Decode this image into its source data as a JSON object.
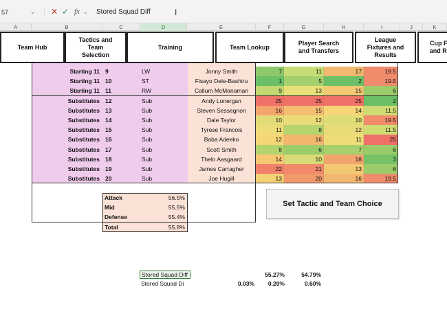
{
  "formula_bar": {
    "name_box": "57",
    "formula": "Stored Squad Diff"
  },
  "columns": [
    "A",
    "B",
    "C",
    "D",
    "E",
    "F",
    "G",
    "H",
    "I",
    "J",
    "K"
  ],
  "nav": [
    {
      "label": "Team Hub"
    },
    {
      "label": "Tactics and Team Selection"
    },
    {
      "label": "Training"
    },
    {
      "label": "Team Lookup"
    },
    {
      "label": "Player Search and Transfers"
    },
    {
      "label": "League Fixtures and Results"
    },
    {
      "label": "Cup F... and R..."
    }
  ],
  "rows": [
    {
      "role": "Starting 11",
      "num": "9",
      "pos": "LW",
      "name": "Jonny Smith",
      "s1": "7",
      "s2": "11",
      "s3": "17",
      "s4": "19.5",
      "c": [
        "#8fc86a",
        "#c8dc76",
        "#f2b86f",
        "#f08b6c"
      ]
    },
    {
      "role": "Starting 11",
      "num": "10",
      "pos": "ST",
      "name": "Fisayo Dele-Bashiru",
      "s1": "1",
      "s2": "5",
      "s3": "2",
      "s4": "19.5",
      "c": [
        "#6bbf66",
        "#a3d06c",
        "#6bbf66",
        "#f08b6c"
      ]
    },
    {
      "role": "Starting 11",
      "num": "11",
      "pos": "RW",
      "name": "Callum McManaman",
      "s1": "9",
      "s2": "13",
      "s3": "15",
      "s4": "6",
      "c": [
        "#c2d870",
        "#e8e07a",
        "#f3c873",
        "#9ccc6a"
      ]
    },
    {
      "role": "Substitutes",
      "num": "12",
      "pos": "Sub",
      "name": "Andy Lonergan",
      "s1": "25",
      "s2": "25",
      "s3": "25",
      "s4": "2",
      "c": [
        "#ee7067",
        "#ee7067",
        "#ee7067",
        "#6bbf66"
      ]
    },
    {
      "role": "Substitutes",
      "num": "13",
      "pos": "Sub",
      "name": "Steven Sessegnon",
      "s1": "16",
      "s2": "15",
      "s3": "14",
      "s4": "11.5",
      "c": [
        "#f4a46d",
        "#f3be71",
        "#f6d577",
        "#cfdc74"
      ]
    },
    {
      "role": "Substitutes",
      "num": "14",
      "pos": "Sub",
      "name": "Dale Taylor",
      "s1": "10",
      "s2": "12",
      "s3": "10",
      "s4": "19.5",
      "c": [
        "#e2dc78",
        "#eadb79",
        "#dfdd78",
        "#f08b6c"
      ]
    },
    {
      "role": "Substitutes",
      "num": "15",
      "pos": "Sub",
      "name": "Tyrese Francois",
      "s1": "11",
      "s2": "8",
      "s3": "12",
      "s4": "11.5",
      "c": [
        "#eedc79",
        "#b6d46e",
        "#eadb79",
        "#cfdc74"
      ]
    },
    {
      "role": "Substitutes",
      "num": "16",
      "pos": "Sub",
      "name": "Baba Adeeko",
      "s1": "12",
      "s2": "16",
      "s3": "11",
      "s4": "25",
      "c": [
        "#f6d577",
        "#f3b66f",
        "#eedc79",
        "#ee7067"
      ]
    },
    {
      "role": "Substitutes",
      "num": "17",
      "pos": "Sub",
      "name": "Scott Smith",
      "s1": "8",
      "s2": "6",
      "s3": "7",
      "s4": "6",
      "c": [
        "#b3d36e",
        "#9ccc6a",
        "#a7cf6c",
        "#9ccc6a"
      ]
    },
    {
      "role": "Substitutes",
      "num": "18",
      "pos": "Sub",
      "name": "Thelo Aasgaard",
      "s1": "14",
      "s2": "10",
      "s3": "18",
      "s4": "3",
      "c": [
        "#f6c873",
        "#d9db76",
        "#f2a46d",
        "#76c266"
      ]
    },
    {
      "role": "Substitutes",
      "num": "19",
      "pos": "Sub",
      "name": "James Carragher",
      "s1": "22",
      "s2": "21",
      "s3": "13",
      "s4": "6",
      "c": [
        "#f0806a",
        "#f08a6b",
        "#f3c873",
        "#9ccc6a"
      ]
    },
    {
      "role": "Substitutes",
      "num": "20",
      "pos": "Sub",
      "name": "Joe Hugill",
      "s1": "13",
      "s2": "20",
      "s3": "16",
      "s4": "19.5",
      "c": [
        "#f3d175",
        "#f19a6c",
        "#f3b66f",
        "#f08b6c"
      ]
    }
  ],
  "summary": [
    {
      "label": "Attack",
      "value": "56.5%"
    },
    {
      "label": "Mid",
      "value": "55.5%"
    },
    {
      "label": "Defense",
      "value": "55.4%"
    },
    {
      "label": "Total",
      "value": "55.8%"
    }
  ],
  "action_button": "Set Tactic and Team Choice",
  "stored": {
    "row1_label": "Stored Squad Diff",
    "row1_f": "55.27%",
    "row1_g": "54.79%",
    "row2_label": "Stored Squad Di",
    "row2_e": "0.03%",
    "row2_f": "0.20%",
    "row2_g": "0.60%"
  }
}
